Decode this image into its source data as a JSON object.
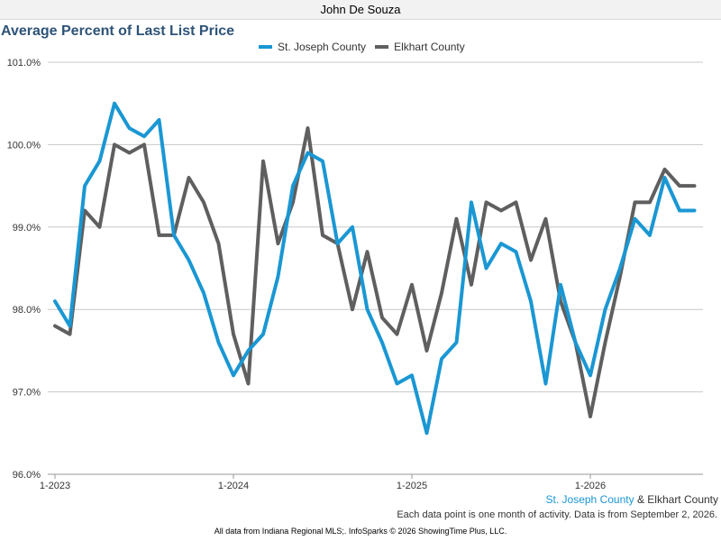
{
  "header": {
    "agent_name": "John De Souza"
  },
  "chart_data": {
    "type": "line",
    "title": "Average Percent of Last List Price",
    "ylim": [
      96.0,
      101.0
    ],
    "y_ticks": [
      "96.0%",
      "97.0%",
      "98.0%",
      "99.0%",
      "100.0%",
      "101.0%"
    ],
    "y_tick_values": [
      96.0,
      97.0,
      98.0,
      99.0,
      100.0,
      101.0
    ],
    "x_ticks": [
      "1-2023",
      "1-2024",
      "1-2025",
      "1-2026"
    ],
    "grid": true,
    "legend_position": "top",
    "x": [
      "1-2023",
      "2-2023",
      "3-2023",
      "4-2023",
      "5-2023",
      "6-2023",
      "7-2023",
      "8-2023",
      "9-2023",
      "10-2023",
      "11-2023",
      "12-2023",
      "1-2024",
      "2-2024",
      "3-2024",
      "4-2024",
      "5-2024",
      "6-2024",
      "7-2024",
      "8-2024",
      "9-2024",
      "10-2024",
      "11-2024",
      "12-2024",
      "1-2025",
      "2-2025",
      "3-2025",
      "4-2025",
      "5-2025",
      "6-2025",
      "7-2025",
      "8-2025",
      "9-2025",
      "10-2025",
      "11-2025",
      "12-2025",
      "1-2026",
      "2-2026",
      "3-2026",
      "4-2026",
      "5-2026",
      "6-2026",
      "7-2026",
      "8-2026"
    ],
    "series": [
      {
        "name": "St. Joseph County",
        "color": "#1a97d3",
        "values": [
          98.1,
          97.8,
          99.5,
          99.8,
          100.5,
          100.2,
          100.1,
          100.3,
          98.9,
          98.6,
          98.2,
          97.6,
          97.2,
          97.5,
          97.7,
          98.4,
          99.5,
          99.9,
          99.8,
          98.8,
          99.0,
          98.0,
          97.6,
          97.1,
          97.2,
          96.5,
          97.4,
          97.6,
          99.3,
          98.5,
          98.8,
          98.7,
          98.1,
          97.1,
          98.3,
          97.6,
          97.2,
          98.0,
          98.5,
          99.1,
          98.9,
          99.6,
          99.2,
          99.2
        ]
      },
      {
        "name": "Elkhart County",
        "color": "#5f5f5f",
        "values": [
          97.8,
          97.7,
          99.2,
          99.0,
          100.0,
          99.9,
          100.0,
          98.9,
          98.9,
          99.6,
          99.3,
          98.8,
          97.7,
          97.1,
          99.8,
          98.8,
          99.3,
          100.2,
          98.9,
          98.8,
          98.0,
          98.7,
          97.9,
          97.7,
          98.3,
          97.5,
          98.2,
          99.1,
          98.3,
          99.3,
          99.2,
          99.3,
          98.6,
          99.1,
          98.1,
          97.6,
          96.7,
          97.6,
          98.4,
          99.3,
          99.3,
          99.7,
          99.5,
          99.5
        ]
      }
    ]
  },
  "caption": {
    "series_a": "St. Joseph County",
    "joiner": "&",
    "series_b": "Elkhart County"
  },
  "note": "Each data point is one month of activity. Data is from September 2, 2026.",
  "footer": "All data from Indiana Regional MLS;. InfoSparks © 2026 ShowingTime Plus, LLC."
}
